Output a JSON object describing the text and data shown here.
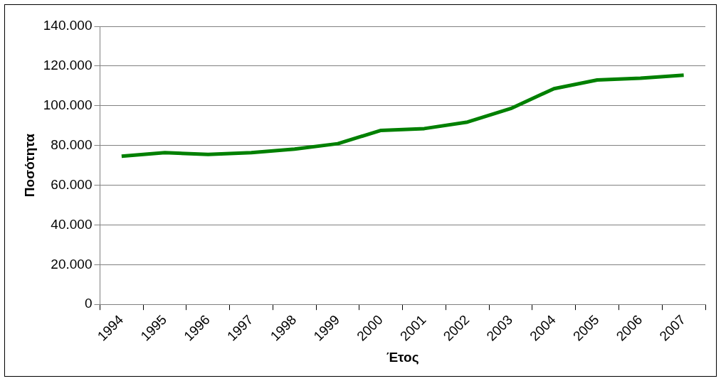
{
  "chart_data": {
    "type": "line",
    "xlabel": "Έτος",
    "ylabel": "Ποσότητα",
    "categories": [
      "1994",
      "1995",
      "1996",
      "1997",
      "1998",
      "1999",
      "2000",
      "2001",
      "2002",
      "2003",
      "2004",
      "2005",
      "2006",
      "2007"
    ],
    "series": [
      {
        "color": "#008000",
        "values": [
          74600,
          76400,
          75500,
          76400,
          78200,
          80900,
          87600,
          88500,
          91800,
          98600,
          108600,
          113000,
          113900,
          115400
        ]
      }
    ],
    "ylim": [
      0,
      140000
    ],
    "yticks": [
      {
        "value": 0,
        "label": "0"
      },
      {
        "value": 20000,
        "label": "20.000"
      },
      {
        "value": 40000,
        "label": "40.000"
      },
      {
        "value": 60000,
        "label": "60.000"
      },
      {
        "value": 80000,
        "label": "80.000"
      },
      {
        "value": 100000,
        "label": "100.000"
      },
      {
        "value": 120000,
        "label": "120.000"
      },
      {
        "value": 140000,
        "label": "140.000"
      }
    ],
    "grid": "y",
    "legend": false,
    "marker": "none",
    "line_style": "solid"
  }
}
